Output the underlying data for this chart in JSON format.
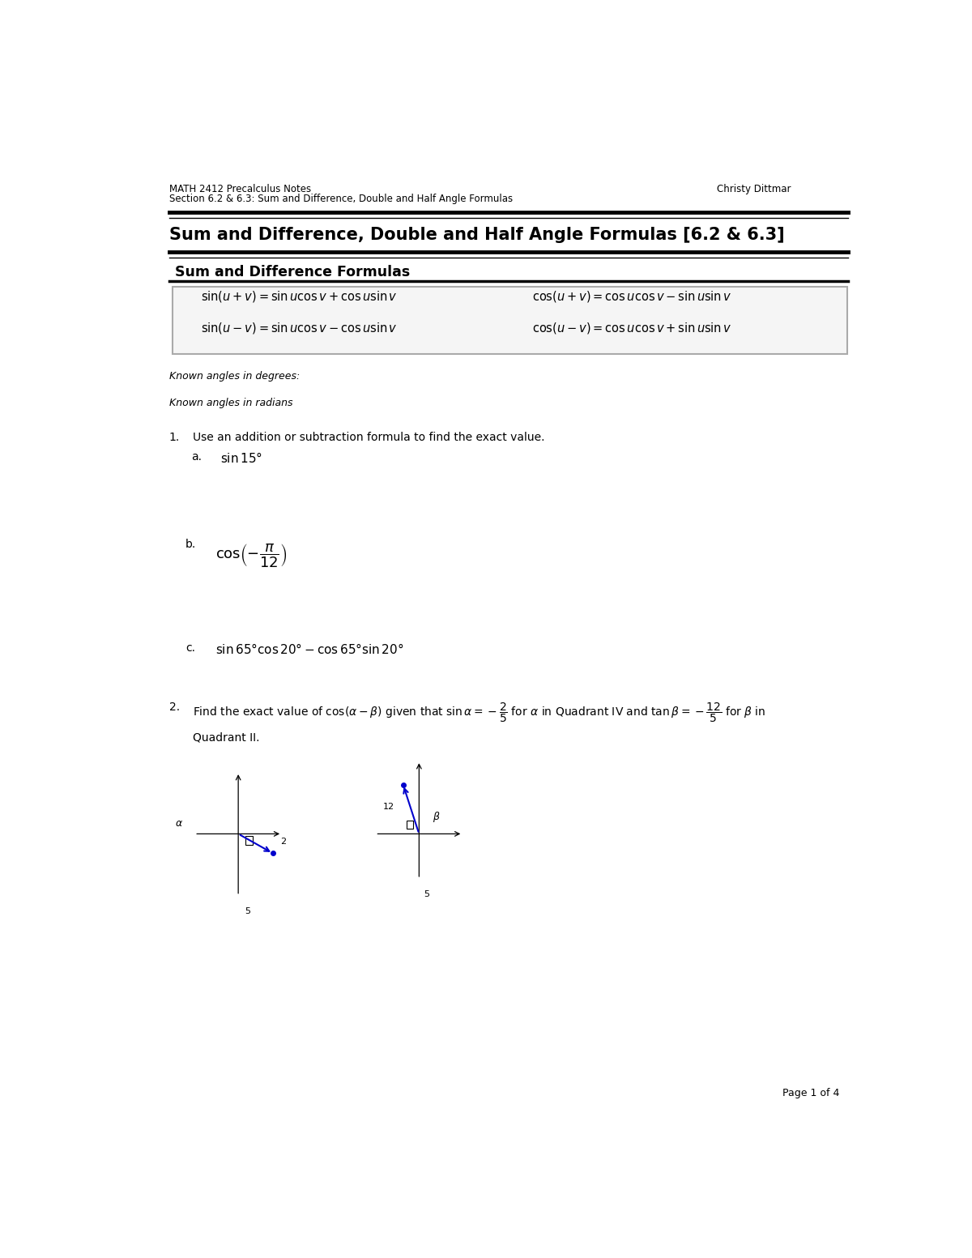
{
  "page_width": 12.0,
  "page_height": 15.53,
  "bg_color": "#ffffff",
  "header_left_line1": "MATH 2412 Precalculus Notes",
  "header_left_line2": "Section 6.2 & 6.3: Sum and Difference, Double and Half Angle Formulas",
  "header_right": "Christy Dittmar",
  "main_title": "Sum and Difference, Double and Half Angle Formulas [6.2 & 6.3]",
  "section_title": "Sum and Difference Formulas",
  "known_degrees": "Known angles in degrees:",
  "known_radians": "Known angles in radians",
  "q1_num": "1.",
  "q1_text": "Use an addition or subtraction formula to find the exact value.",
  "q1a_label": "a.",
  "q1b_label": "b.",
  "q1c_label": "c.",
  "q2_num": "2.",
  "footer_text": "Page 1 of 4",
  "line_color": "#000000",
  "box_edge_color": "#aaaaaa",
  "box_face_color": "#f5f5f5",
  "blue_color": "#0000cc"
}
